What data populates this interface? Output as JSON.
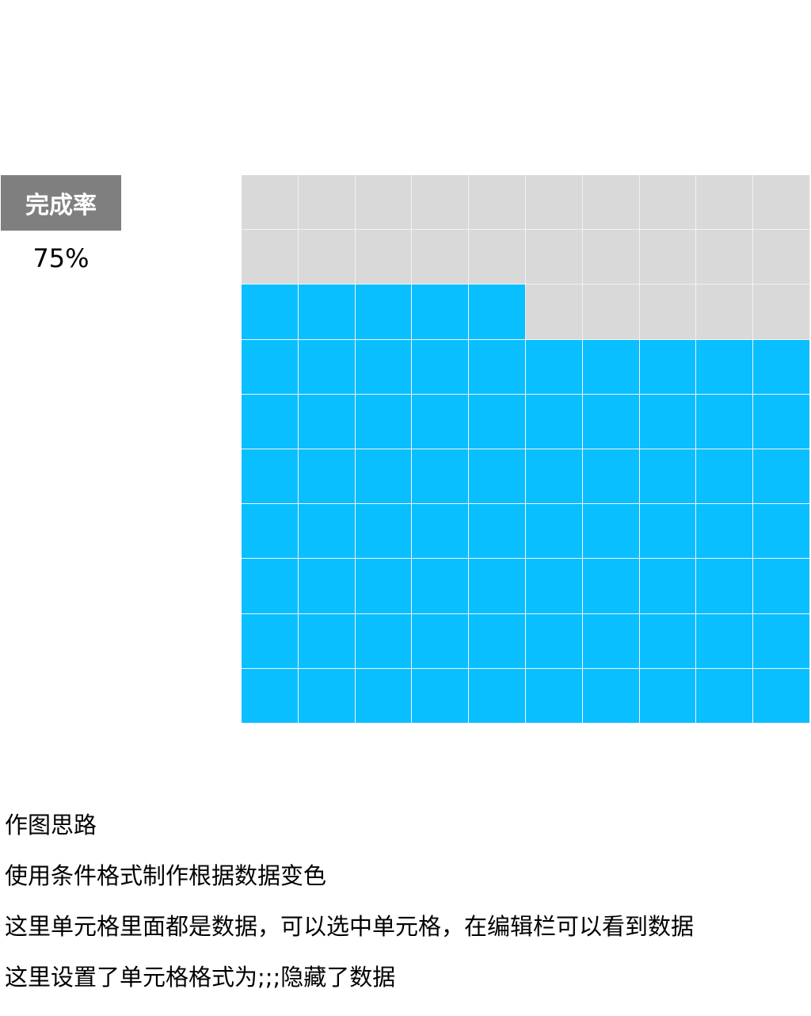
{
  "chart_data": {
    "type": "waffle",
    "label": "完成率",
    "value_text": "75%",
    "value": 75,
    "rows": 10,
    "cols": 10,
    "filled_color": "#0abfff",
    "empty_color": "#d9d9d9",
    "fill_from": "bottom"
  },
  "notes": [
    "作图思路",
    "使用条件格式制作根据数据变色",
    "这里单元格里面都是数据，可以选中单元格，在编辑栏可以看到数据",
    "这里设置了单元格格式为;;;隐藏了数据"
  ]
}
